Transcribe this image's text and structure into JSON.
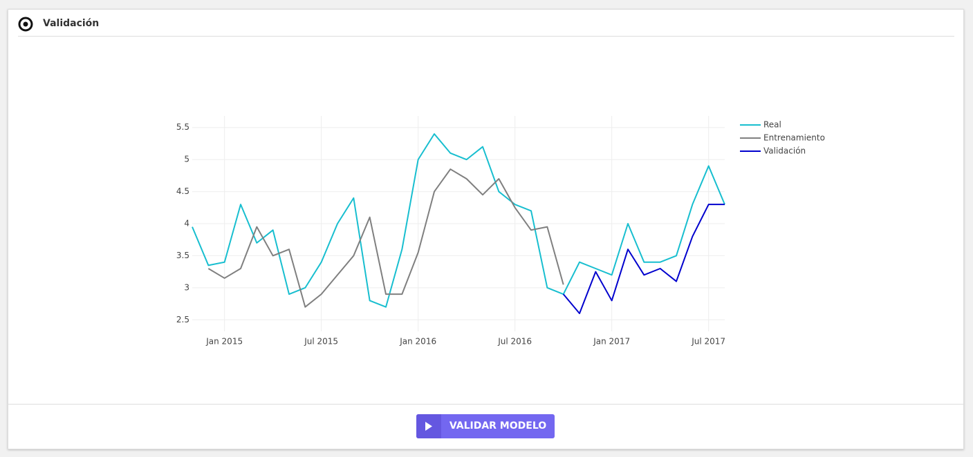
{
  "header": {
    "title": "Validación"
  },
  "chart_data": {
    "type": "line",
    "x": [
      "2014-11",
      "2014-12",
      "2015-01",
      "2015-02",
      "2015-03",
      "2015-04",
      "2015-05",
      "2015-06",
      "2015-07",
      "2015-08",
      "2015-09",
      "2015-10",
      "2015-11",
      "2015-12",
      "2016-01",
      "2016-02",
      "2016-03",
      "2016-04",
      "2016-05",
      "2016-06",
      "2016-07",
      "2016-08",
      "2016-09",
      "2016-10",
      "2016-11",
      "2016-12",
      "2017-01",
      "2017-02",
      "2017-03",
      "2017-04",
      "2017-05",
      "2017-06",
      "2017-07",
      "2017-08"
    ],
    "series": [
      {
        "name": "Real",
        "color": "#17becf",
        "values": [
          3.95,
          3.35,
          3.4,
          4.3,
          3.7,
          3.9,
          2.9,
          3.0,
          3.4,
          4.0,
          4.4,
          2.8,
          2.7,
          3.6,
          5.0,
          5.4,
          5.1,
          5.0,
          5.2,
          4.5,
          4.3,
          4.2,
          3.0,
          2.9,
          3.4,
          3.3,
          3.2,
          4.0,
          3.4,
          3.4,
          3.5,
          4.3,
          4.9,
          4.3
        ]
      },
      {
        "name": "Entrenamiento",
        "color": "#7f7f7f",
        "values": [
          null,
          3.3,
          3.15,
          3.3,
          3.95,
          3.5,
          3.6,
          2.7,
          2.9,
          3.2,
          3.5,
          4.1,
          2.9,
          2.9,
          3.55,
          4.5,
          4.85,
          4.7,
          4.45,
          4.7,
          4.25,
          3.9,
          3.95,
          3.05,
          null,
          null,
          null,
          null,
          null,
          null,
          null,
          null,
          null,
          null
        ]
      },
      {
        "name": "Validación",
        "color": "#0000cd",
        "values": [
          null,
          null,
          null,
          null,
          null,
          null,
          null,
          null,
          null,
          null,
          null,
          null,
          null,
          null,
          null,
          null,
          null,
          null,
          null,
          null,
          null,
          null,
          null,
          2.9,
          2.6,
          3.25,
          2.8,
          3.6,
          3.2,
          3.3,
          3.1,
          3.8,
          4.3,
          4.3
        ]
      }
    ],
    "xlim": [
      "2014-11",
      "2017-08"
    ],
    "xticks": [
      {
        "value": "2015-01",
        "label": "Jan 2015"
      },
      {
        "value": "2015-07",
        "label": "Jul 2015"
      },
      {
        "value": "2016-01",
        "label": "Jan 2016"
      },
      {
        "value": "2016-07",
        "label": "Jul 2016"
      },
      {
        "value": "2017-01",
        "label": "Jan 2017"
      },
      {
        "value": "2017-07",
        "label": "Jul 2017"
      }
    ],
    "ylim": [
      2.32,
      5.68
    ],
    "yticks": [
      2.5,
      3,
      3.5,
      4,
      4.5,
      5,
      5.5
    ],
    "grid": true,
    "legend": "right"
  },
  "button": {
    "label": "VALIDAR MODELO"
  }
}
